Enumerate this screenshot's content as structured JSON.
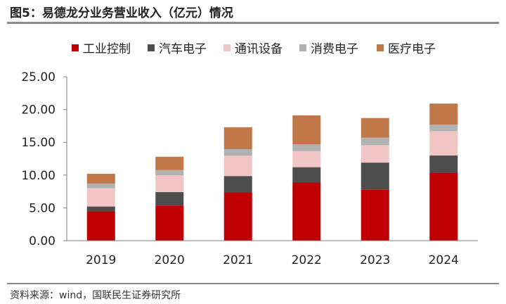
{
  "header": {
    "title": "图5：易德龙分业务营业收入（亿元）情况"
  },
  "footer": {
    "source": "资料来源：wind，国联民生证券研究所"
  },
  "chart_data": {
    "type": "bar",
    "stacked": true,
    "categories": [
      "2019",
      "2020",
      "2021",
      "2022",
      "2023",
      "2024"
    ],
    "ylim": [
      0,
      25
    ],
    "yticks": [
      "0.00",
      "5.00",
      "10.00",
      "15.00",
      "20.00",
      "25.00"
    ],
    "grid": false,
    "legend_position": "top",
    "series": [
      {
        "name": "工业控制",
        "color": "#c00000",
        "values": [
          4.45,
          5.35,
          7.35,
          8.85,
          7.8,
          10.3
        ]
      },
      {
        "name": "汽车电子",
        "color": "#4d4d4d",
        "values": [
          0.75,
          2.05,
          2.5,
          2.35,
          4.1,
          2.7
        ]
      },
      {
        "name": "通讯设备",
        "color": "#f1c5c5",
        "values": [
          2.8,
          2.55,
          3.1,
          2.45,
          2.65,
          3.7
        ]
      },
      {
        "name": "消费电子",
        "color": "#b1b1b1",
        "values": [
          0.7,
          0.8,
          1.0,
          1.05,
          1.15,
          1.0
        ]
      },
      {
        "name": "医疗电子",
        "color": "#c07848",
        "values": [
          1.5,
          2.05,
          3.35,
          4.4,
          3.0,
          3.2
        ]
      }
    ]
  }
}
